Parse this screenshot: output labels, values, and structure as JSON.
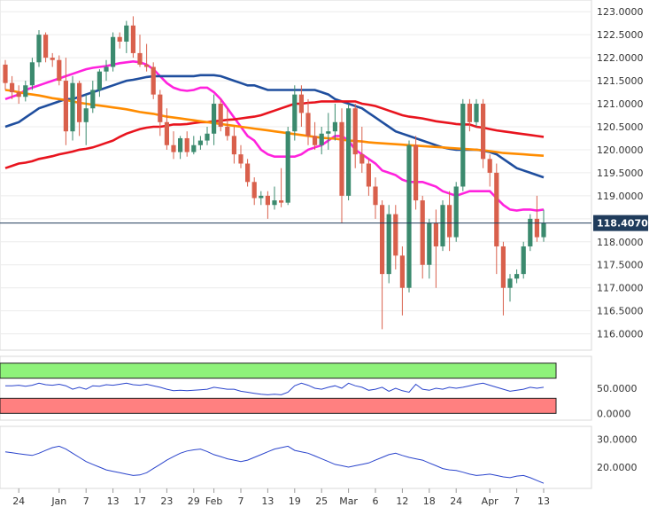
{
  "chart_data": [
    {
      "type": "candlestick",
      "title": "",
      "ylim": [
        115.8,
        123.1
      ],
      "y_ticks": [
        "123.0000",
        "122.5000",
        "122.0000",
        "121.5000",
        "121.0000",
        "120.5000",
        "120.0000",
        "119.5000",
        "119.0000",
        "118.5000",
        "118.0000",
        "117.5000",
        "117.0000",
        "116.5000",
        "116.0000"
      ],
      "y_tick_values": [
        123.0,
        122.5,
        122.0,
        121.5,
        121.0,
        120.5,
        120.0,
        119.5,
        119.0,
        118.5,
        118.0,
        117.5,
        117.0,
        116.5,
        116.0
      ],
      "x_ticks": [
        "24",
        "Jan",
        "7",
        "13",
        "17",
        "23",
        "29",
        "Feb",
        "7",
        "13",
        "19",
        "25",
        "Mar",
        "6",
        "12",
        "18",
        "24",
        "Apr",
        "7",
        "13"
      ],
      "x_tick_index": [
        2,
        8,
        12,
        16,
        20,
        24,
        28,
        31,
        35,
        39,
        43,
        47,
        51,
        55,
        59,
        63,
        67,
        72,
        76,
        80
      ],
      "current_price": "118.4070",
      "current_value": 118.407,
      "colors": {
        "up": "#3b8a6e",
        "down": "#d9604c",
        "ma_fast": "#ff22dd",
        "ma_mid": "#1f4e9e",
        "ma_slow": "#e8141e",
        "ma_long": "#ff8c00",
        "price_tag": "#203c5c"
      },
      "candles": [
        [
          121.85,
          121.95,
          121.3,
          121.45
        ],
        [
          121.45,
          121.6,
          121.1,
          121.25
        ],
        [
          121.25,
          121.4,
          121.0,
          121.15
        ],
        [
          121.15,
          121.5,
          121.05,
          121.4
        ],
        [
          121.4,
          122.0,
          121.3,
          121.9
        ],
        [
          121.9,
          122.6,
          121.8,
          122.5
        ],
        [
          122.5,
          122.55,
          121.9,
          122.0
        ],
        [
          122.0,
          122.1,
          121.8,
          121.95
        ],
        [
          121.95,
          122.05,
          121.4,
          121.5
        ],
        [
          121.5,
          122.0,
          120.1,
          120.4
        ],
        [
          120.4,
          121.6,
          120.2,
          121.45
        ],
        [
          121.45,
          121.5,
          120.3,
          120.6
        ],
        [
          120.6,
          121.2,
          120.1,
          120.9
        ],
        [
          120.9,
          121.5,
          120.8,
          121.3
        ],
        [
          121.3,
          121.75,
          121.15,
          121.7
        ],
        [
          121.7,
          121.95,
          121.5,
          121.8
        ],
        [
          121.8,
          122.55,
          121.7,
          122.45
        ],
        [
          122.45,
          122.55,
          122.2,
          122.35
        ],
        [
          122.35,
          122.8,
          122.1,
          122.7
        ],
        [
          122.7,
          122.9,
          122.0,
          122.1
        ],
        [
          122.1,
          122.5,
          121.8,
          121.85
        ],
        [
          121.85,
          122.3,
          121.7,
          121.8
        ],
        [
          121.8,
          121.9,
          121.1,
          121.2
        ],
        [
          121.2,
          121.3,
          120.3,
          120.6
        ],
        [
          120.6,
          120.9,
          120.0,
          120.1
        ],
        [
          120.1,
          120.4,
          119.8,
          119.95
        ],
        [
          119.95,
          120.3,
          119.8,
          120.25
        ],
        [
          120.25,
          120.4,
          119.85,
          119.95
        ],
        [
          119.95,
          120.3,
          119.9,
          120.1
        ],
        [
          120.1,
          120.3,
          120.0,
          120.2
        ],
        [
          120.2,
          120.5,
          120.1,
          120.35
        ],
        [
          120.35,
          121.2,
          120.1,
          121.0
        ],
        [
          121.0,
          121.1,
          120.4,
          120.5
        ],
        [
          120.5,
          120.9,
          120.2,
          120.3
        ],
        [
          120.3,
          120.5,
          119.7,
          119.9
        ],
        [
          119.9,
          120.1,
          119.6,
          119.7
        ],
        [
          119.7,
          119.8,
          119.2,
          119.3
        ],
        [
          119.3,
          119.4,
          118.8,
          118.95
        ],
        [
          118.95,
          119.1,
          118.8,
          119.0
        ],
        [
          119.0,
          119.1,
          118.5,
          118.8
        ],
        [
          118.8,
          119.2,
          118.7,
          118.9
        ],
        [
          118.9,
          119.6,
          118.75,
          118.85
        ],
        [
          118.85,
          120.5,
          118.8,
          120.4
        ],
        [
          120.4,
          121.4,
          120.2,
          121.2
        ],
        [
          121.2,
          121.4,
          120.5,
          120.8
        ],
        [
          120.8,
          121.1,
          120.1,
          120.3
        ],
        [
          120.3,
          120.6,
          120.0,
          120.1
        ],
        [
          120.1,
          120.5,
          119.9,
          120.35
        ],
        [
          120.35,
          120.8,
          120.0,
          120.4
        ],
        [
          120.4,
          121.0,
          120.2,
          120.6
        ],
        [
          120.6,
          120.9,
          118.4,
          119.0
        ],
        [
          119.0,
          121.0,
          118.9,
          120.9
        ],
        [
          120.9,
          121.0,
          119.6,
          119.9
        ],
        [
          119.9,
          120.5,
          119.5,
          119.7
        ],
        [
          119.7,
          119.8,
          119.0,
          119.2
        ],
        [
          119.2,
          119.4,
          118.5,
          118.8
        ],
        [
          118.8,
          118.9,
          116.1,
          117.3
        ],
        [
          117.3,
          118.8,
          117.1,
          118.6
        ],
        [
          118.6,
          118.8,
          117.4,
          117.7
        ],
        [
          117.7,
          117.9,
          116.4,
          117.0
        ],
        [
          117.0,
          120.2,
          116.9,
          120.1
        ],
        [
          120.1,
          120.3,
          118.7,
          118.9
        ],
        [
          118.9,
          119.0,
          117.2,
          117.5
        ],
        [
          117.5,
          118.5,
          117.2,
          118.4
        ],
        [
          118.4,
          118.7,
          117.0,
          117.9
        ],
        [
          117.9,
          118.9,
          117.8,
          118.8
        ],
        [
          118.8,
          119.1,
          117.8,
          118.1
        ],
        [
          118.1,
          119.3,
          118.0,
          119.2
        ],
        [
          119.2,
          121.1,
          119.1,
          121.0
        ],
        [
          121.0,
          121.1,
          120.4,
          120.6
        ],
        [
          120.6,
          121.1,
          120.5,
          121.0
        ],
        [
          121.0,
          121.1,
          119.6,
          119.8
        ],
        [
          119.8,
          119.9,
          119.2,
          119.5
        ],
        [
          119.5,
          119.7,
          117.3,
          117.9
        ],
        [
          117.9,
          118.0,
          116.4,
          117.0
        ],
        [
          117.0,
          117.3,
          116.7,
          117.2
        ],
        [
          117.2,
          117.4,
          117.1,
          117.3
        ],
        [
          117.3,
          118.0,
          117.2,
          117.9
        ],
        [
          117.9,
          118.6,
          117.8,
          118.5
        ],
        [
          118.5,
          119.0,
          118.0,
          118.1
        ],
        [
          118.1,
          118.7,
          118.0,
          118.41
        ]
      ],
      "overlays": [
        {
          "name_key": "ma_fast",
          "values": [
            121.1,
            121.15,
            121.2,
            121.3,
            121.35,
            121.4,
            121.45,
            121.5,
            121.55,
            121.6,
            121.65,
            121.7,
            121.75,
            121.78,
            121.8,
            121.82,
            121.85,
            121.88,
            121.9,
            121.92,
            121.9,
            121.85,
            121.75,
            121.6,
            121.45,
            121.35,
            121.3,
            121.28,
            121.3,
            121.35,
            121.35,
            121.25,
            121.1,
            120.9,
            120.7,
            120.5,
            120.3,
            120.2,
            120.0,
            119.9,
            119.85,
            119.85,
            119.85,
            119.85,
            119.9,
            120.0,
            120.05,
            120.1,
            120.2,
            120.3,
            120.3,
            120.2,
            120.0,
            119.9,
            119.8,
            119.7,
            119.55,
            119.5,
            119.45,
            119.35,
            119.3,
            119.3,
            119.3,
            119.25,
            119.2,
            119.1,
            119.05,
            119.0,
            119.05,
            119.1,
            119.1,
            119.1,
            119.1,
            118.95,
            118.8,
            118.7,
            118.68,
            118.7,
            118.7,
            118.68,
            118.7
          ]
        },
        {
          "name_key": "ma_mid",
          "values": [
            120.5,
            120.55,
            120.6,
            120.7,
            120.8,
            120.9,
            120.95,
            121.0,
            121.05,
            121.1,
            121.1,
            121.15,
            121.2,
            121.25,
            121.3,
            121.35,
            121.4,
            121.45,
            121.5,
            121.52,
            121.55,
            121.58,
            121.6,
            121.6,
            121.6,
            121.6,
            121.6,
            121.6,
            121.6,
            121.62,
            121.62,
            121.62,
            121.6,
            121.55,
            121.5,
            121.45,
            121.4,
            121.4,
            121.35,
            121.3,
            121.3,
            121.3,
            121.3,
            121.3,
            121.3,
            121.3,
            121.3,
            121.25,
            121.2,
            121.1,
            121.05,
            121.0,
            120.95,
            120.9,
            120.8,
            120.7,
            120.6,
            120.5,
            120.4,
            120.35,
            120.3,
            120.25,
            120.2,
            120.15,
            120.1,
            120.05,
            120.02,
            120.0,
            120.0,
            120.0,
            120.0,
            119.98,
            119.95,
            119.9,
            119.8,
            119.7,
            119.6,
            119.55,
            119.5,
            119.45,
            119.4
          ]
        },
        {
          "name_key": "ma_slow",
          "values": [
            119.6,
            119.65,
            119.7,
            119.72,
            119.75,
            119.8,
            119.83,
            119.86,
            119.9,
            119.93,
            119.96,
            120.0,
            120.02,
            120.05,
            120.1,
            120.15,
            120.2,
            120.28,
            120.35,
            120.4,
            120.45,
            120.48,
            120.5,
            120.5,
            120.52,
            120.55,
            120.55,
            120.56,
            120.58,
            120.6,
            120.6,
            120.62,
            120.63,
            120.65,
            120.66,
            120.68,
            120.7,
            120.72,
            120.75,
            120.8,
            120.85,
            120.9,
            120.95,
            121.0,
            121.0,
            121.02,
            121.03,
            121.05,
            121.05,
            121.05,
            121.05,
            121.05,
            121.05,
            121.0,
            120.98,
            120.95,
            120.9,
            120.85,
            120.8,
            120.75,
            120.72,
            120.7,
            120.68,
            120.65,
            120.62,
            120.6,
            120.58,
            120.56,
            120.55,
            120.55,
            120.5,
            120.48,
            120.45,
            120.42,
            120.4,
            120.38,
            120.36,
            120.34,
            120.32,
            120.3,
            120.28
          ]
        },
        {
          "name_key": "ma_long",
          "values": [
            121.3,
            121.28,
            121.25,
            121.22,
            121.2,
            121.18,
            121.15,
            121.12,
            121.1,
            121.08,
            121.05,
            121.02,
            121.0,
            120.98,
            120.96,
            120.94,
            120.92,
            120.9,
            120.88,
            120.85,
            120.82,
            120.8,
            120.78,
            120.75,
            120.72,
            120.7,
            120.68,
            120.66,
            120.64,
            120.62,
            120.6,
            120.58,
            120.56,
            120.54,
            120.52,
            120.5,
            120.48,
            120.46,
            120.44,
            120.42,
            120.4,
            120.38,
            120.36,
            120.34,
            120.32,
            120.3,
            120.28,
            120.26,
            120.25,
            120.24,
            120.22,
            120.2,
            120.19,
            120.18,
            120.16,
            120.15,
            120.14,
            120.13,
            120.12,
            120.11,
            120.1,
            120.09,
            120.08,
            120.07,
            120.06,
            120.05,
            120.04,
            120.03,
            120.02,
            120.01,
            120.0,
            119.99,
            119.97,
            119.95,
            119.93,
            119.92,
            119.91,
            119.9,
            119.89,
            119.88,
            119.87
          ]
        }
      ]
    },
    {
      "type": "line",
      "title": "",
      "ylim": [
        -10,
        110
      ],
      "y_ticks": [
        "50.0000",
        "0.0000"
      ],
      "y_tick_values": [
        50,
        0
      ],
      "upper_band": [
        70,
        100
      ],
      "lower_band": [
        0,
        30
      ],
      "colors": {
        "upper_band": "#8ef27a",
        "lower_band": "#ff8080",
        "line": "#2a44cc"
      },
      "series": [
        {
          "values": [
            55,
            55,
            56,
            54,
            56,
            60,
            57,
            56,
            58,
            55,
            48,
            52,
            48,
            55,
            54,
            57,
            56,
            58,
            60,
            57,
            56,
            58,
            55,
            52,
            48,
            45,
            46,
            45,
            46,
            47,
            48,
            52,
            50,
            48,
            48,
            44,
            42,
            40,
            38,
            37,
            38,
            37,
            42,
            55,
            60,
            56,
            50,
            48,
            52,
            55,
            50,
            60,
            55,
            52,
            46,
            48,
            52,
            44,
            50,
            45,
            42,
            58,
            48,
            46,
            50,
            48,
            52,
            50,
            52,
            55,
            58,
            60,
            56,
            52,
            48,
            44,
            46,
            48,
            52,
            50,
            52
          ]
        }
      ]
    },
    {
      "type": "line",
      "title": "",
      "ylim": [
        13,
        34
      ],
      "y_ticks": [
        "30.0000",
        "20.0000"
      ],
      "y_tick_values": [
        30,
        20
      ],
      "colors": {
        "line": "#2a44cc"
      },
      "series": [
        {
          "values": [
            25.5,
            25.2,
            24.8,
            24.5,
            24.2,
            25,
            26,
            27,
            27.5,
            26.5,
            25,
            23.5,
            22,
            21,
            20,
            19,
            18.5,
            18,
            17.5,
            17,
            17.2,
            18,
            19.5,
            21,
            22.5,
            23.8,
            25,
            25.8,
            26.2,
            26.5,
            25.6,
            24.5,
            23.8,
            23,
            22.5,
            22,
            22.5,
            23.5,
            24.5,
            25.5,
            26.5,
            27,
            27.5,
            26,
            25.5,
            25,
            24,
            23,
            22,
            21,
            20.5,
            20,
            20.5,
            21,
            21.5,
            22.5,
            23.5,
            24.5,
            25,
            24.2,
            23.5,
            23,
            22.5,
            21.5,
            20.5,
            19.5,
            19,
            18.8,
            18.2,
            17.5,
            17,
            17.2,
            17.5,
            17,
            16.5,
            16.2,
            16.8,
            17,
            16.2,
            15.2,
            14.2
          ]
        }
      ]
    }
  ]
}
